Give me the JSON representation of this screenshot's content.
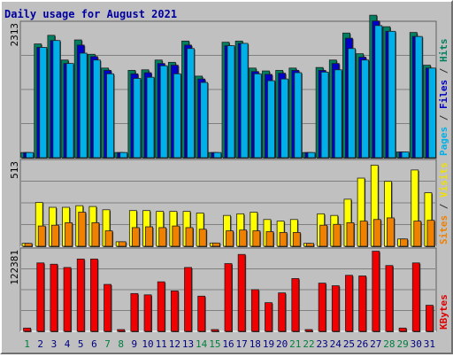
{
  "chart_data": {
    "type": "bar",
    "title": "Daily usage for August 2021",
    "categories": [
      "1",
      "2",
      "3",
      "4",
      "5",
      "6",
      "7",
      "8",
      "9",
      "10",
      "11",
      "12",
      "13",
      "14",
      "15",
      "16",
      "17",
      "18",
      "19",
      "20",
      "21",
      "22",
      "23",
      "24",
      "25",
      "26",
      "27",
      "28",
      "29",
      "30",
      "31"
    ],
    "weekend_days": [
      "1",
      "7",
      "8",
      "14",
      "15",
      "21",
      "22",
      "28",
      "29"
    ],
    "panels": [
      {
        "id": "top",
        "ymax_label": "2313",
        "ymax": 2313,
        "right_labels": [
          {
            "text": "Pages",
            "color": "#00b0e8"
          },
          {
            "text": " / ",
            "color": "#303030"
          },
          {
            "text": "Files",
            "color": "#0000c8"
          },
          {
            "text": " / ",
            "color": "#303030"
          },
          {
            "text": "Hits",
            "color": "#008060"
          }
        ],
        "series": [
          {
            "name": "Hits",
            "color": "#008060",
            "values": [
              90,
              1980,
              2130,
              1700,
              2050,
              1800,
              1560,
              90,
              1520,
              1530,
              1700,
              1660,
              2030,
              1420,
              90,
              2010,
              2030,
              1560,
              1510,
              1520,
              1560,
              90,
              1570,
              1700,
              2170,
              1810,
              2480,
              2280,
              100,
              2180,
              1610
            ]
          },
          {
            "name": "Files",
            "color": "#0000c8",
            "values": [
              90,
              1920,
              2040,
              1640,
              1960,
              1760,
              1520,
              90,
              1460,
              1480,
              1640,
              1610,
              1960,
              1370,
              90,
              1950,
              1990,
              1500,
              1450,
              1470,
              1520,
              90,
              1520,
              1640,
              2080,
              1750,
              2380,
              2200,
              100,
              2110,
              1560
            ]
          },
          {
            "name": "Pages",
            "color": "#00b0e8",
            "values": [
              90,
              1920,
              2040,
              1640,
              1820,
              1700,
              1460,
              90,
              1380,
              1400,
              1600,
              1460,
              1900,
              1310,
              90,
              1950,
              1990,
              1460,
              1340,
              1370,
              1480,
              90,
              1490,
              1530,
              1900,
              1700,
              2300,
              2200,
              100,
              2110,
              1560
            ]
          }
        ]
      },
      {
        "id": "mid",
        "ymax_label": "513",
        "ymax": 513,
        "right_labels": [
          {
            "text": "Sites",
            "color": "#f08000"
          },
          {
            "text": " / ",
            "color": "#303030"
          },
          {
            "text": "Visits",
            "color": "#f0e000"
          }
        ],
        "series": [
          {
            "name": "Visits",
            "color": "#ffff00",
            "values": [
              18,
              270,
              240,
              240,
              250,
              245,
              225,
              28,
              220,
              220,
              215,
              215,
              215,
              205,
              20,
              190,
              200,
              210,
              165,
              155,
              165,
              18,
              200,
              190,
              290,
              420,
              500,
              400,
              45,
              470,
              330
            ]
          },
          {
            "name": "Sites",
            "color": "#f08000",
            "values": [
              18,
              125,
              130,
              145,
              210,
              145,
              95,
              28,
              115,
              120,
              115,
              125,
              115,
              105,
              20,
              95,
              100,
              95,
              90,
              85,
              85,
              18,
              130,
              135,
              145,
              155,
              165,
              175,
              45,
              155,
              160
            ]
          }
        ]
      },
      {
        "id": "bot",
        "ymax_label": "122381",
        "ymax": 122381,
        "right_labels": [
          {
            "text": "KBytes",
            "color": "#e00000"
          }
        ],
        "series": [
          {
            "name": "KBytes",
            "color": "#f00000",
            "values": [
              5000,
              105000,
              103000,
              98000,
              111000,
              111000,
              72000,
              2500,
              58000,
              56000,
              76000,
              62000,
              98000,
              54000,
              2500,
              104000,
              118000,
              64000,
              44000,
              59000,
              81000,
              2500,
              74000,
              70000,
              86000,
              85000,
              123000,
              101000,
              5000,
              105000,
              40000
            ]
          }
        ]
      }
    ]
  }
}
